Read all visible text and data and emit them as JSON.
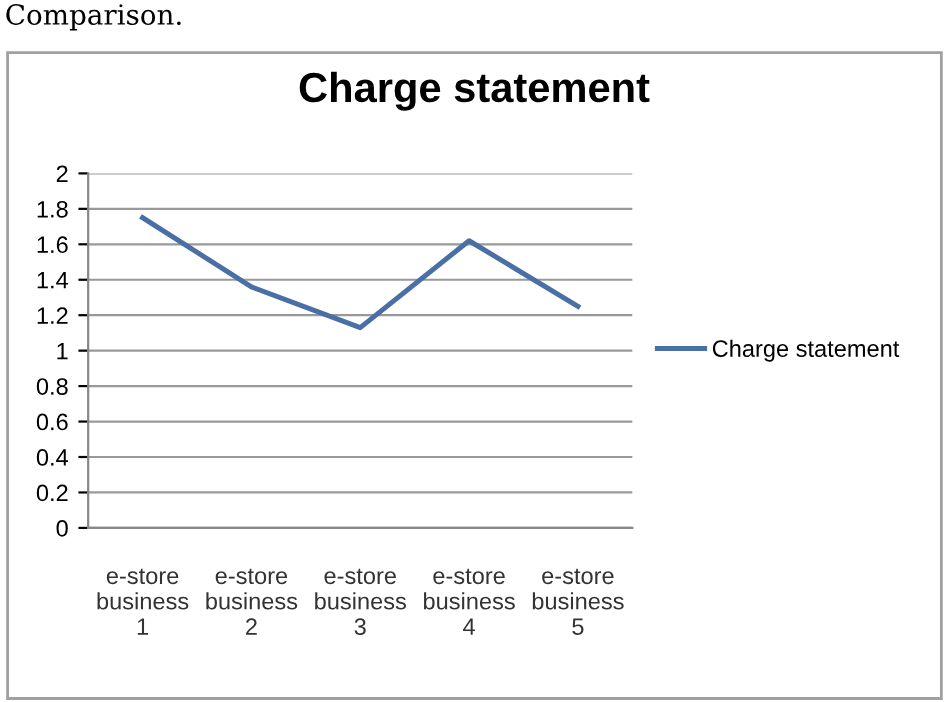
{
  "chart_data": {
    "type": "line",
    "title": "Charge statement",
    "categories": [
      "e-store\nbusiness\n1",
      "e-store\nbusiness\n2",
      "e-store\nbusiness\n3",
      "e-store\nbusiness\n4",
      "e-store\nbusiness\n5"
    ],
    "series": [
      {
        "name": "Charge statement",
        "color": "#4a6fa5",
        "values": [
          1.75,
          1.36,
          1.13,
          1.62,
          1.25
        ]
      }
    ],
    "ylim": [
      0,
      2
    ],
    "yticks": [
      0,
      0.2,
      0.4,
      0.6,
      0.8,
      1,
      1.2,
      1.4,
      1.6,
      1.8,
      2
    ],
    "grid": "y",
    "legend": "right",
    "marker": "none",
    "line_style": "solid",
    "annotations": [
      "Comparison."
    ]
  }
}
